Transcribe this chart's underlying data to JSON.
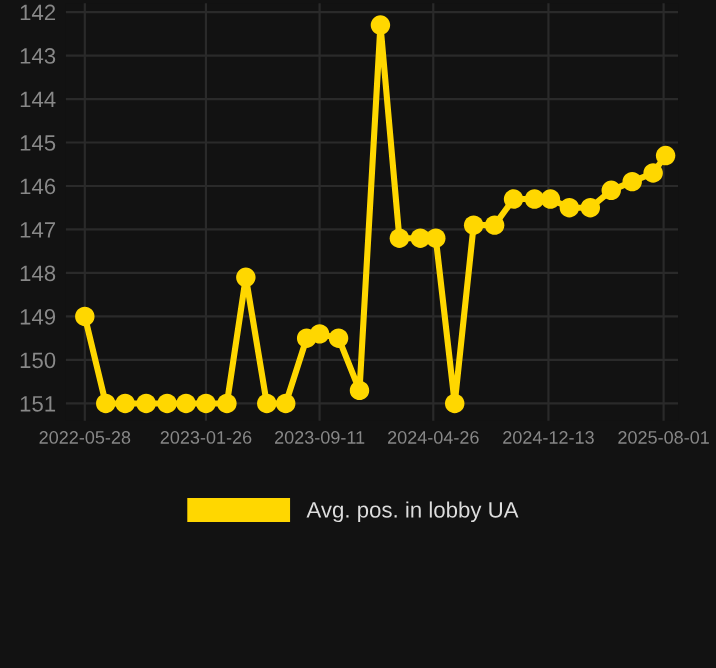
{
  "chart_data": {
    "type": "line",
    "x": [
      "2022-05-28",
      "2022-07-09",
      "2022-08-17",
      "2022-09-28",
      "2022-11-09",
      "2022-12-17",
      "2023-01-26",
      "2023-03-09",
      "2023-04-16",
      "2023-05-28",
      "2023-07-05",
      "2023-08-16",
      "2023-09-11",
      "2023-10-19",
      "2023-11-30",
      "2024-01-11",
      "2024-02-18",
      "2024-03-31",
      "2024-05-01",
      "2024-06-08",
      "2024-07-16",
      "2024-08-27",
      "2024-10-04",
      "2024-11-15",
      "2024-12-17",
      "2025-01-24",
      "2025-03-07",
      "2025-04-18",
      "2025-05-30",
      "2025-07-11",
      "2025-08-05"
    ],
    "series": [
      {
        "name": "Avg. pos. in lobby UA",
        "color": "#ffd700",
        "values": [
          149.0,
          151,
          151,
          151,
          151,
          151,
          151,
          151,
          148.1,
          151,
          151,
          149.5,
          149.4,
          149.5,
          150.7,
          142.3,
          147.2,
          147.2,
          147.2,
          151,
          146.9,
          146.9,
          146.3,
          146.3,
          146.3,
          146.5,
          146.5,
          146.1,
          145.9,
          145.7,
          145.3
        ]
      }
    ],
    "ylim": [
      151.4,
      141.8
    ],
    "yticks": [
      142,
      143,
      144,
      145,
      146,
      147,
      148,
      149,
      150,
      151
    ],
    "xlim": [
      "2022-04-20",
      "2025-08-30"
    ],
    "xticks": [
      "2022-05-28",
      "2023-01-26",
      "2023-09-11",
      "2024-04-26",
      "2024-12-13",
      "2025-08-01"
    ],
    "grid": true,
    "legend": "bottom",
    "marker": "circle",
    "line_style": "solid"
  }
}
